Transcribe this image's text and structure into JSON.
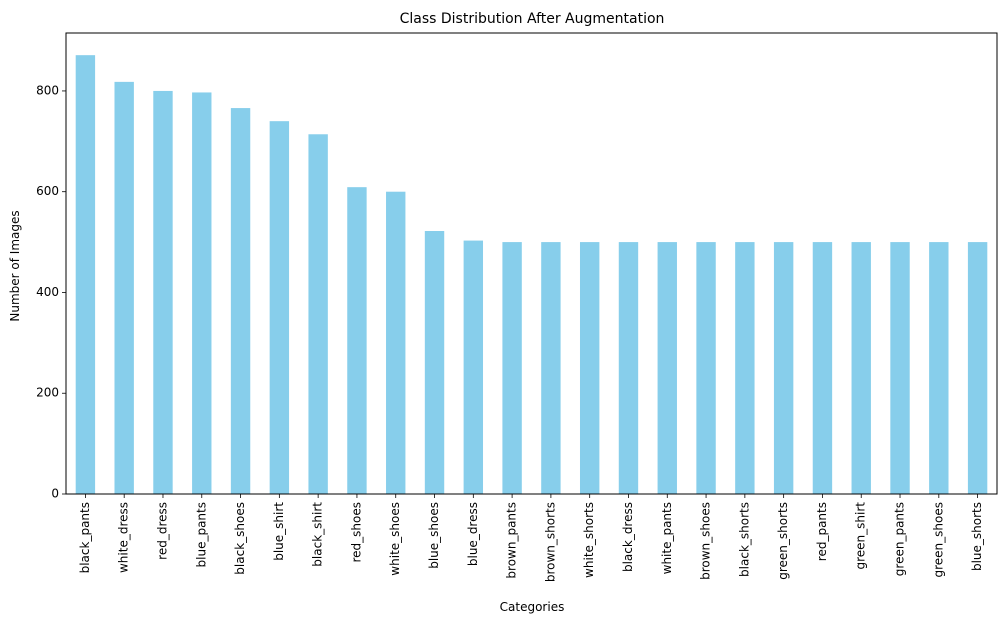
{
  "chart_data": {
    "type": "bar",
    "title": "Class Distribution After Augmentation",
    "xlabel": "Categories",
    "ylabel": "Number of Images",
    "categories": [
      "black_pants",
      "white_dress",
      "red_dress",
      "blue_pants",
      "black_shoes",
      "blue_shirt",
      "black_shirt",
      "red_shoes",
      "white_shoes",
      "blue_shoes",
      "blue_dress",
      "brown_pants",
      "brown_shorts",
      "white_shorts",
      "black_dress",
      "white_pants",
      "brown_shoes",
      "black_shorts",
      "green_shorts",
      "red_pants",
      "green_shirt",
      "green_pants",
      "green_shoes",
      "blue_shorts"
    ],
    "values": [
      871,
      818,
      800,
      797,
      766,
      740,
      714,
      609,
      600,
      522,
      503,
      500,
      500,
      500,
      500,
      500,
      500,
      500,
      500,
      500,
      500,
      500,
      500,
      500
    ],
    "ylim": [
      0,
      915
    ],
    "yticks": [
      0,
      200,
      400,
      600,
      800
    ],
    "bar_color": "#87ceeb",
    "grid": false,
    "legend": "none"
  }
}
